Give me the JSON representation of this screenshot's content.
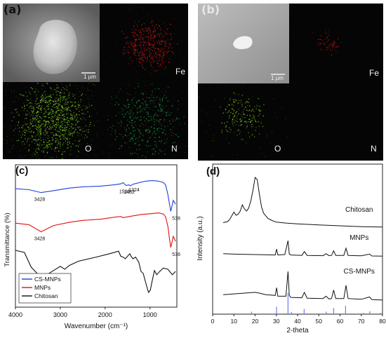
{
  "panels": {
    "a": {
      "label": "(a)",
      "scale_label": "1 μm",
      "maps": [
        "Fe",
        "O",
        "N"
      ]
    },
    "b": {
      "label": "(b)",
      "scale_label": "1 μm",
      "maps": [
        "Fe",
        "O",
        "N"
      ]
    },
    "c": {
      "label": "(c)"
    },
    "d": {
      "label": "(d)"
    }
  },
  "colors": {
    "fe_map": "#d01818",
    "o_map": "#7cc820",
    "n_map": "#20a040",
    "cs_mnps": "#1f3fd8",
    "mnps": "#e01010",
    "chitosan": "#111111",
    "reference_lines": "#6f7bff"
  },
  "chart_data": [
    {
      "type": "line",
      "xlabel": "Wavenumber (cm⁻¹)",
      "ylabel": "Transmittance (%)",
      "xlim": [
        4000,
        400
      ],
      "x_ticks": [
        "4000",
        "3000",
        "2000",
        "1000"
      ],
      "legend_position": "bottom-left",
      "series": [
        {
          "name": "CS-MNPs",
          "x": [
            4000,
            3700,
            3428,
            3150,
            2800,
            2500,
            2100,
            1800,
            1650,
            1600,
            1533,
            1470,
            1432,
            1380,
            1324,
            1150,
            1050,
            950,
            850,
            760,
            700,
            650,
            600,
            565,
            536,
            480,
            430
          ],
          "y": [
            0.78,
            0.75,
            0.66,
            0.72,
            0.8,
            0.84,
            0.86,
            0.9,
            0.93,
            0.97,
            0.88,
            0.9,
            0.87,
            0.92,
            0.94,
            1.0,
            1.02,
            1.03,
            1.02,
            1.0,
            0.97,
            0.9,
            0.6,
            0.3,
            0.08,
            0.42,
            0.3
          ]
        },
        {
          "name": "MNPs",
          "x": [
            4000,
            3700,
            3428,
            3150,
            2800,
            2500,
            2100,
            1800,
            1650,
            1600,
            1400,
            1200,
            1000,
            800,
            700,
            650,
            600,
            565,
            536,
            480,
            430
          ],
          "y": [
            0.8,
            0.76,
            0.58,
            0.74,
            0.82,
            0.87,
            0.9,
            0.95,
            0.97,
            0.94,
            0.98,
            1.02,
            1.04,
            1.06,
            1.03,
            0.96,
            0.72,
            0.4,
            0.18,
            0.46,
            0.34
          ]
        },
        {
          "name": "Chitosan",
          "x": [
            4000,
            3800,
            3650,
            3450,
            3300,
            3150,
            3000,
            2900,
            2800,
            2600,
            2200,
            1900,
            1700,
            1650,
            1600,
            1550,
            1450,
            1420,
            1380,
            1320,
            1250,
            1200,
            1150,
            1100,
            1060,
            1030,
            990,
            950,
            900,
            850,
            800,
            700,
            600,
            500,
            430
          ],
          "y": [
            1.0,
            0.95,
            0.6,
            0.38,
            0.42,
            0.52,
            0.62,
            0.55,
            0.64,
            0.74,
            0.84,
            0.92,
            0.98,
            0.86,
            0.84,
            0.8,
            0.92,
            0.86,
            0.8,
            0.84,
            0.72,
            0.5,
            0.45,
            0.25,
            0.1,
            0.0,
            0.06,
            0.28,
            0.52,
            0.42,
            0.48,
            0.58,
            0.55,
            0.42,
            0.5
          ]
        }
      ],
      "annotations": [
        {
          "text": "3428",
          "series": "CS-MNPs"
        },
        {
          "text": "1533",
          "series": "CS-MNPs"
        },
        {
          "text": "1432",
          "series": "CS-MNPs"
        },
        {
          "text": "1324",
          "series": "CS-MNPs"
        },
        {
          "text": "536",
          "series": "CS-MNPs"
        },
        {
          "text": "3428",
          "series": "MNPs"
        },
        {
          "text": "536",
          "series": "MNPs"
        }
      ]
    },
    {
      "type": "line",
      "xlabel": "2-theta",
      "ylabel": "Intensity (a.u.)",
      "xlim": [
        0,
        80
      ],
      "x_ticks": [
        "0",
        "10",
        "20",
        "30",
        "40",
        "50",
        "60",
        "70",
        "80"
      ],
      "series": [
        {
          "name": "Chitosan",
          "x": [
            5,
            7,
            8,
            10,
            11,
            12,
            13,
            14,
            15,
            16,
            17,
            18,
            19,
            20,
            21,
            22,
            23,
            24,
            26,
            28,
            30,
            35,
            40,
            50,
            60,
            70,
            80
          ],
          "y": [
            0.5,
            0.6,
            0.8,
            1.5,
            1.2,
            1.3,
            1.6,
            2.2,
            1.8,
            1.6,
            1.9,
            2.6,
            3.6,
            4.8,
            4.6,
            3.2,
            2.0,
            1.4,
            0.9,
            0.7,
            0.55,
            0.45,
            0.38,
            0.28,
            0.2,
            0.12,
            0.08
          ]
        },
        {
          "name": "MNPs",
          "x": [
            5,
            10,
            20,
            29.5,
            30.1,
            30.7,
            34,
            35.5,
            36.1,
            36.8,
            42,
            43.2,
            44.5,
            52,
            53.4,
            54.8,
            56,
            57,
            58,
            61.8,
            62.8,
            63.8,
            70,
            73.9,
            75,
            80
          ],
          "y": [
            0.35,
            0.3,
            0.25,
            0.2,
            0.9,
            0.2,
            0.25,
            1.9,
            0.3,
            0.2,
            0.15,
            0.6,
            0.15,
            0.12,
            0.35,
            0.12,
            0.15,
            0.7,
            0.15,
            0.15,
            1.0,
            0.15,
            0.1,
            0.3,
            0.08,
            0.06
          ]
        },
        {
          "name": "CS-MNPs",
          "x": [
            5,
            10,
            15,
            20,
            22,
            25,
            29.5,
            30.1,
            30.7,
            34.5,
            35.5,
            36.1,
            36.8,
            42,
            43.2,
            44.5,
            52,
            53.4,
            54.8,
            56,
            57,
            58,
            61.8,
            62.8,
            63.8,
            70,
            73.9,
            75,
            80
          ],
          "y": [
            0.8,
            0.9,
            1.0,
            1.1,
            1.0,
            0.8,
            0.7,
            1.7,
            0.6,
            0.6,
            3.8,
            0.7,
            0.45,
            0.4,
            1.1,
            0.35,
            0.3,
            0.6,
            0.25,
            0.3,
            1.4,
            0.3,
            0.3,
            2.0,
            0.3,
            0.2,
            0.5,
            0.15,
            0.1
          ]
        }
      ],
      "reference_peaks": [
        18.3,
        30.1,
        35.5,
        37.1,
        43.1,
        53.5,
        57.0,
        62.6,
        71.0,
        74.0,
        79.0
      ],
      "reference_heights": [
        0.12,
        0.35,
        1.0,
        0.1,
        0.25,
        0.12,
        0.3,
        0.4,
        0.06,
        0.14,
        0.06
      ]
    }
  ]
}
